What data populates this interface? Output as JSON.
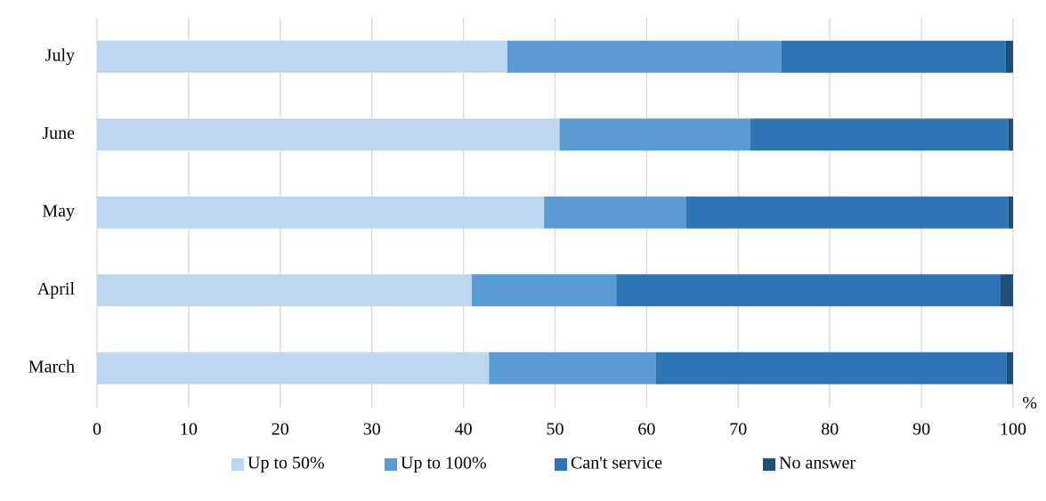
{
  "chart_data": {
    "type": "bar",
    "orientation": "horizontal",
    "stacked": true,
    "categories": [
      "July",
      "June",
      "May",
      "April",
      "March"
    ],
    "series": [
      {
        "name": "Up to 50%",
        "color": "#bdd7ee",
        "values": [
          44.8,
          50.5,
          48.8,
          40.9,
          42.8
        ]
      },
      {
        "name": "Up to 100%",
        "color": "#5b9bd5",
        "values": [
          29.9,
          20.8,
          15.5,
          15.8,
          18.2
        ]
      },
      {
        "name": "Can't service",
        "color": "#2e75b6",
        "values": [
          24.5,
          28.2,
          35.2,
          41.9,
          38.3
        ]
      },
      {
        "name": "No answer",
        "color": "#1f4e79",
        "values": [
          0.8,
          0.5,
          0.5,
          1.4,
          0.7
        ]
      }
    ],
    "xlim": [
      0,
      100
    ],
    "xticks": [
      0,
      10,
      20,
      30,
      40,
      50,
      60,
      70,
      80,
      90,
      100
    ],
    "unit": "%",
    "title": "",
    "xlabel": "",
    "ylabel": "",
    "grid": "vertical",
    "legend": "bottom"
  }
}
